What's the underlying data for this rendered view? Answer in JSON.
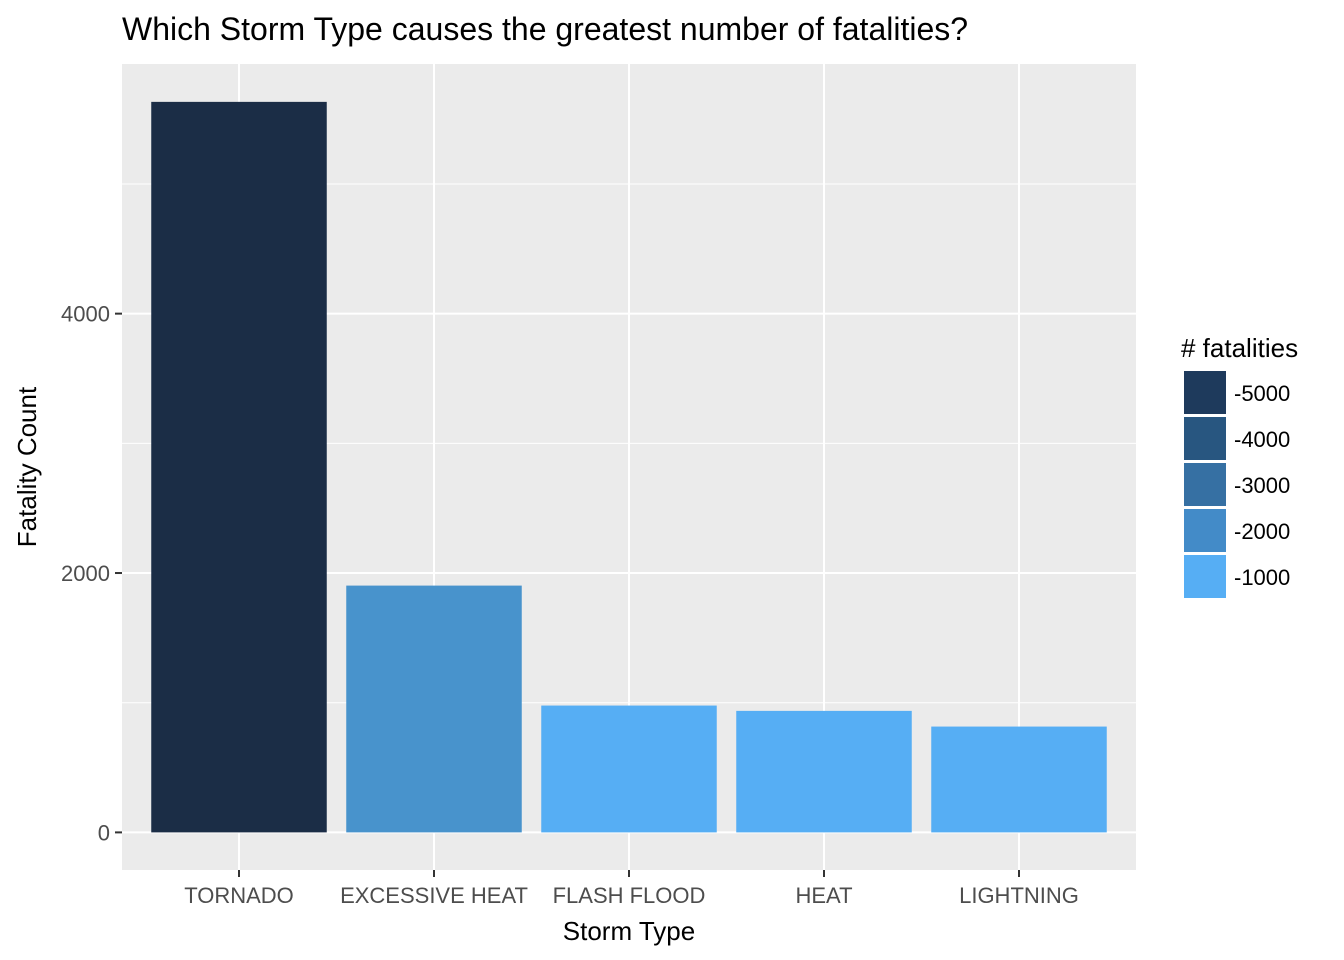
{
  "chart_data": {
    "type": "bar",
    "title": "Which Storm Type causes the greatest number of fatalities?",
    "xlabel": "Storm Type",
    "ylabel": "Fatality Count",
    "categories": [
      "TORNADO",
      "EXCESSIVE HEAT",
      "FLASH FLOOD",
      "HEAT",
      "LIGHTNING"
    ],
    "values": [
      5633,
      1903,
      978,
      937,
      816
    ],
    "bar_colors": [
      "#1b2d46",
      "#4893cc",
      "#56aef4",
      "#56aef4",
      "#56aef4"
    ],
    "ylim": [
      -290,
      5925
    ],
    "y_ticks": [
      0,
      2000,
      4000
    ],
    "y_tick_labels": [
      "0",
      "2000",
      "4000"
    ],
    "y_minor_ticks": [
      1000,
      3000,
      5000
    ],
    "grid": true,
    "panel_background": "#ebebeb",
    "grid_color": "#ffffff",
    "legend": {
      "title": "# fatalities",
      "position": "right",
      "entries": [
        {
          "label": "-5000",
          "color": "#1e3a5c"
        },
        {
          "label": "-4000",
          "color": "#285680"
        },
        {
          "label": "-3000",
          "color": "#3670a3"
        },
        {
          "label": "-2000",
          "color": "#438bc8"
        },
        {
          "label": "-1000",
          "color": "#56aef4"
        }
      ]
    }
  }
}
